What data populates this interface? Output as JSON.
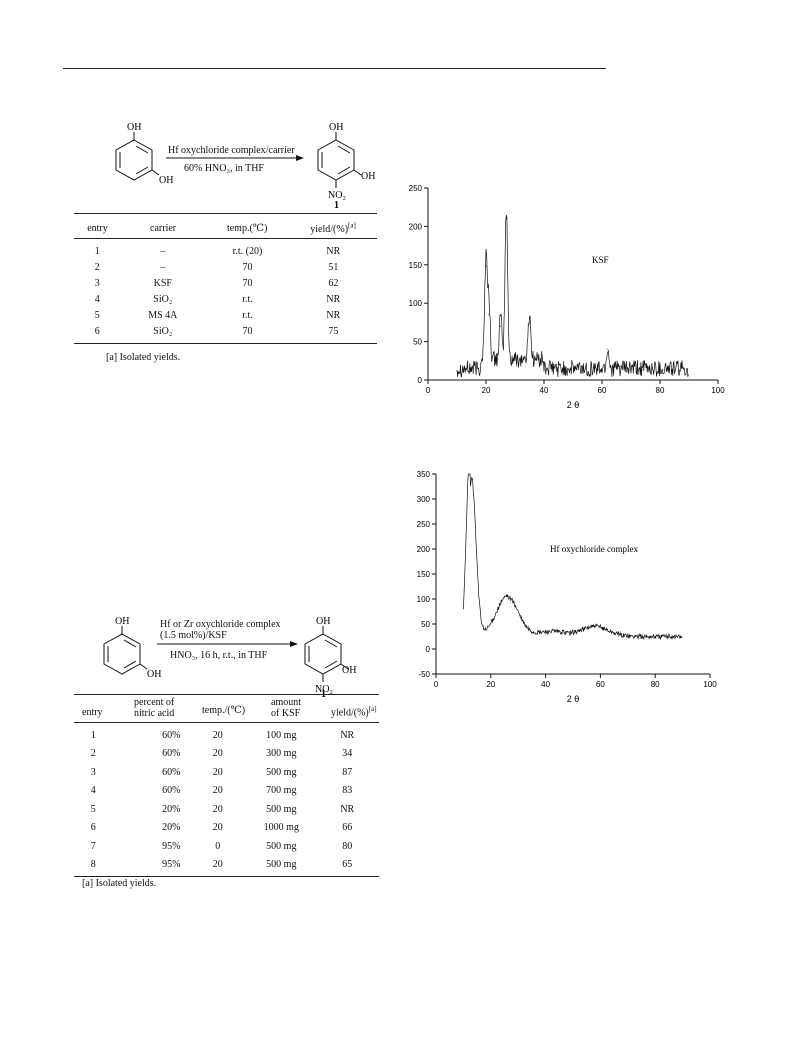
{
  "scheme1": {
    "reagent": "Hf oxychloride complex/carrier",
    "conditions": "60% HNO₃,  in THF",
    "reactant_oh1": "OH",
    "reactant_oh2": "OH",
    "product_oh1": "OH",
    "product_oh2": "OH",
    "product_no2": "NO₂",
    "product_label": "1"
  },
  "table1": {
    "headers": [
      "entry",
      "carrier",
      "temp.(℃)",
      "yield/(%)[a]"
    ],
    "rows": [
      [
        "1",
        "–",
        "r.t. (20)",
        "NR"
      ],
      [
        "2",
        "–",
        "70",
        "51"
      ],
      [
        "3",
        "KSF",
        "70",
        "62"
      ],
      [
        "4",
        "SiO₂",
        "r.t.",
        "NR"
      ],
      [
        "5",
        "MS 4A",
        "r.t.",
        "NR"
      ],
      [
        "6",
        "SiO₂",
        "70",
        "75"
      ]
    ],
    "footnote": "[a] Isolated yields."
  },
  "scheme2": {
    "reagent_line1": "Hf or Zr oxychloride complex",
    "reagent_line2": "(1.5 mol%)/KSF",
    "conditions": "HNO₃, 16 h,  r.t., in THF",
    "reactant_oh1": "OH",
    "reactant_oh2": "OH",
    "product_oh1": "OH",
    "product_oh2": "OH",
    "product_no2": "NO₂",
    "product_label": "1"
  },
  "table2": {
    "headers": [
      "entry",
      "percent of nitric acid",
      "temp./(℃)",
      "amount of KSF",
      "yield/(%)[a]"
    ],
    "header_lines": {
      "col2a": "percent of",
      "col2b": "nitric acid",
      "col4a": "amount",
      "col4b": "of KSF"
    },
    "rows": [
      [
        "1",
        "60%",
        "20",
        "100 mg",
        "NR"
      ],
      [
        "2",
        "60%",
        "20",
        "300 mg",
        "34"
      ],
      [
        "3",
        "60%",
        "20",
        "500 mg",
        "87"
      ],
      [
        "4",
        "60%",
        "20",
        "700 mg",
        "83"
      ],
      [
        "5",
        "20%",
        "20",
        "500 mg",
        "NR"
      ],
      [
        "6",
        "20%",
        "20",
        "1000 mg",
        "66"
      ],
      [
        "7",
        "95%",
        "0",
        "500 mg",
        "80"
      ],
      [
        "8",
        "95%",
        "20",
        "500 mg",
        "65"
      ]
    ],
    "footnote": "[a] Isolated yields."
  },
  "chart_data": [
    {
      "type": "line",
      "title": "",
      "annotation": "KSF",
      "xlabel": "2 θ",
      "ylabel": "",
      "xlim": [
        0,
        100
      ],
      "ylim": [
        0,
        250
      ],
      "xticks": [
        0,
        20,
        40,
        60,
        80,
        100
      ],
      "yticks": [
        0,
        50,
        100,
        150,
        200,
        250
      ],
      "grid": false,
      "peaks": [
        {
          "x": 20,
          "y": 148
        },
        {
          "x": 21,
          "y": 85
        },
        {
          "x": 25,
          "y": 70
        },
        {
          "x": 27,
          "y": 210
        },
        {
          "x": 35,
          "y": 75
        },
        {
          "x": 62,
          "y": 40
        }
      ],
      "x_range_data": [
        10,
        90
      ],
      "baseline_level": 15
    },
    {
      "type": "line",
      "title": "",
      "annotation": "Hf oxychloride complex",
      "xlabel": "2 θ",
      "ylabel": "",
      "xlim": [
        0,
        100
      ],
      "ylim": [
        -50,
        350
      ],
      "xticks": [
        0,
        20,
        40,
        60,
        80,
        100
      ],
      "yticks": [
        -50,
        0,
        50,
        100,
        150,
        200,
        250,
        300,
        350
      ],
      "grid": false,
      "peaks": [
        {
          "x": 13,
          "y": 340
        },
        {
          "x": 26,
          "y": 108
        },
        {
          "x": 58,
          "y": 45
        }
      ],
      "x_range_data": [
        10,
        90
      ],
      "baseline_level": 25
    }
  ]
}
